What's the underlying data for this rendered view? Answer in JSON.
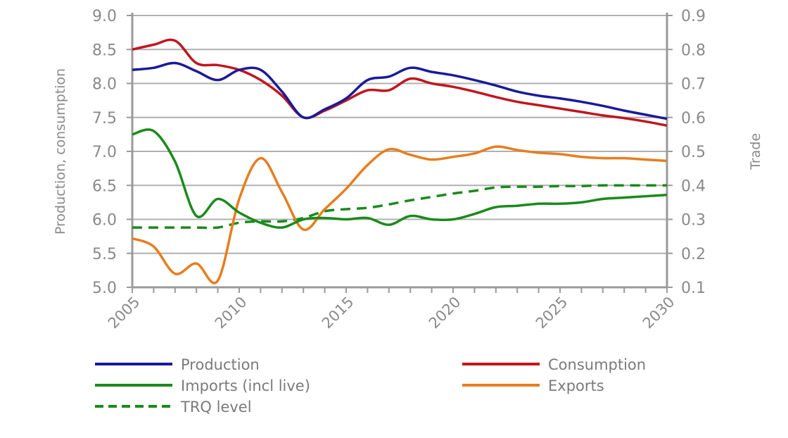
{
  "chart_data": {
    "type": "line",
    "x": [
      2005,
      2006,
      2007,
      2008,
      2009,
      2010,
      2011,
      2012,
      2013,
      2014,
      2015,
      2016,
      2017,
      2018,
      2019,
      2020,
      2021,
      2022,
      2023,
      2024,
      2025,
      2026,
      2027,
      2028,
      2029,
      2030
    ],
    "x_ticks": [
      "2005",
      "2010",
      "2015",
      "2020",
      "2025",
      "2030"
    ],
    "ylabel": "Production, consumption",
    "y2label": "Trade",
    "ylim": [
      5.0,
      9.0
    ],
    "y2lim": [
      0.1,
      0.9
    ],
    "y_ticks": [
      "5.0",
      "5.5",
      "6.0",
      "6.5",
      "7.0",
      "7.5",
      "8.0",
      "8.5",
      "9.0"
    ],
    "y2_ticks": [
      "0.1",
      "0.2",
      "0.3",
      "0.4",
      "0.5",
      "0.6",
      "0.7",
      "0.8",
      "0.9"
    ],
    "grid": true,
    "legend_placement": "bottom",
    "series": [
      {
        "name": "Production",
        "axis": "left",
        "color": "#1a1a9a",
        "dash": false,
        "values": [
          8.2,
          8.23,
          8.3,
          8.18,
          8.05,
          8.2,
          8.2,
          7.88,
          7.5,
          7.62,
          7.78,
          8.05,
          8.1,
          8.23,
          8.17,
          8.12,
          8.05,
          7.97,
          7.88,
          7.82,
          7.78,
          7.73,
          7.67,
          7.6,
          7.54,
          7.48
        ]
      },
      {
        "name": "Consumption",
        "axis": "left",
        "color": "#c0161e",
        "dash": false,
        "values": [
          8.5,
          8.57,
          8.63,
          8.3,
          8.27,
          8.2,
          8.05,
          7.82,
          7.5,
          7.6,
          7.75,
          7.9,
          7.9,
          8.07,
          8.0,
          7.95,
          7.88,
          7.8,
          7.73,
          7.68,
          7.63,
          7.58,
          7.53,
          7.49,
          7.44,
          7.38
        ]
      },
      {
        "name": "Imports (incl live)",
        "axis": "right",
        "color": "#1b8a1b",
        "dash": false,
        "values": [
          0.55,
          0.56,
          0.47,
          0.31,
          0.36,
          0.32,
          0.29,
          0.276,
          0.3,
          0.304,
          0.3,
          0.304,
          0.284,
          0.31,
          0.3,
          0.3,
          0.316,
          0.336,
          0.34,
          0.346,
          0.346,
          0.35,
          0.36,
          0.364,
          0.368,
          0.372
        ]
      },
      {
        "name": "Exports",
        "axis": "right",
        "color": "#e87d1e",
        "dash": false,
        "values": [
          0.244,
          0.22,
          0.14,
          0.17,
          0.12,
          0.36,
          0.48,
          0.38,
          0.27,
          0.33,
          0.39,
          0.46,
          0.506,
          0.49,
          0.476,
          0.484,
          0.494,
          0.514,
          0.504,
          0.496,
          0.492,
          0.484,
          0.48,
          0.48,
          0.476,
          0.472
        ]
      },
      {
        "name": "TRQ level",
        "axis": "right",
        "color": "#1b8a1b",
        "dash": true,
        "values": [
          0.276,
          0.276,
          0.276,
          0.276,
          0.276,
          0.29,
          0.294,
          0.294,
          0.304,
          0.324,
          0.33,
          0.334,
          0.344,
          0.356,
          0.366,
          0.376,
          0.384,
          0.394,
          0.396,
          0.396,
          0.398,
          0.398,
          0.4,
          0.4,
          0.4,
          0.4
        ]
      }
    ]
  }
}
